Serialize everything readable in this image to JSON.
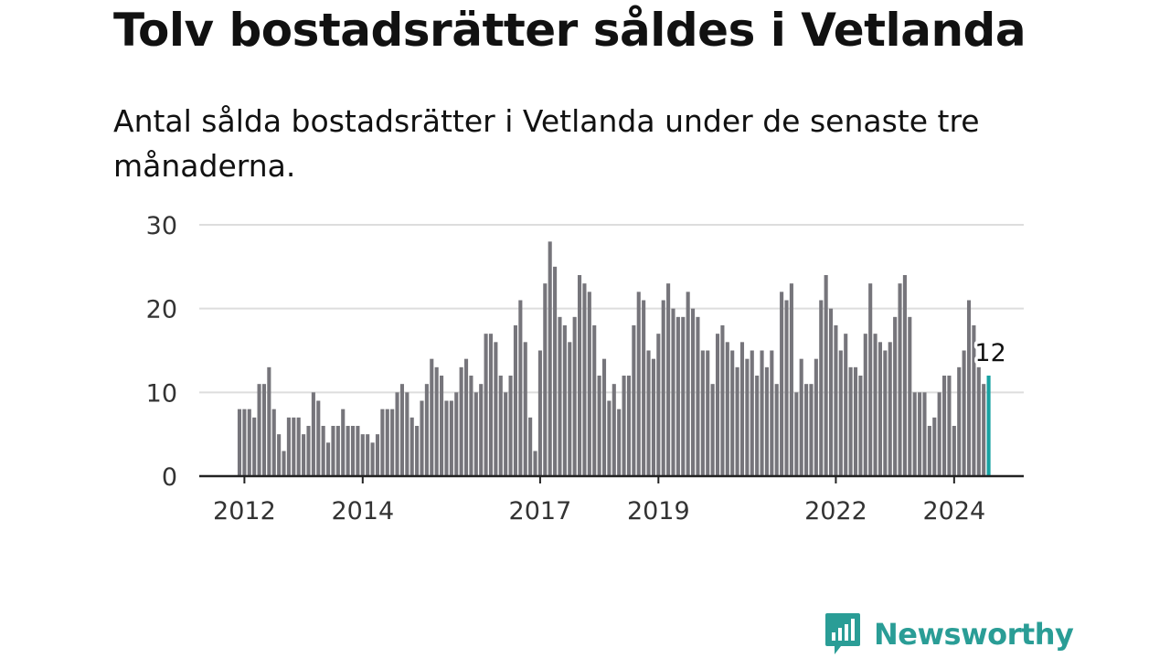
{
  "header": {
    "title": "Tolv bostadsrätter såldes i Vetlanda",
    "subtitle": "Antal sålda bostadsrätter i Vetlanda under de senaste tre månaderna."
  },
  "brand": {
    "name": "Newsworthy",
    "logo_icon": "bar-chart-speech-bubble-icon",
    "color": "#2a9d96"
  },
  "colors": {
    "bar": "#76757b",
    "highlight": "#17a2a2",
    "grid": "#dddddd",
    "axis": "#222222"
  },
  "chart_data": {
    "type": "bar",
    "title": "Tolv bostadsrätter såldes i Vetlanda",
    "subtitle": "Antal sålda bostadsrätter i Vetlanda under de senaste tre månaderna.",
    "x_start": "2011-12",
    "x_unit": "month",
    "ylim": [
      0,
      30
    ],
    "yticks": [
      0,
      10,
      20,
      30
    ],
    "xticks": [
      "2012",
      "2014",
      "2017",
      "2019",
      "2022",
      "2024"
    ],
    "grid": true,
    "values": [
      8,
      8,
      8,
      7,
      11,
      11,
      13,
      8,
      5,
      3,
      7,
      7,
      7,
      5,
      6,
      10,
      9,
      6,
      4,
      6,
      6,
      8,
      6,
      6,
      6,
      5,
      5,
      4,
      5,
      8,
      8,
      8,
      10,
      11,
      10,
      7,
      6,
      9,
      11,
      14,
      13,
      12,
      9,
      9,
      10,
      13,
      14,
      12,
      10,
      11,
      17,
      17,
      16,
      12,
      10,
      12,
      18,
      21,
      16,
      7,
      3,
      15,
      23,
      28,
      25,
      19,
      18,
      16,
      19,
      24,
      23,
      22,
      18,
      12,
      14,
      9,
      11,
      8,
      12,
      12,
      18,
      22,
      21,
      15,
      14,
      17,
      21,
      23,
      20,
      19,
      19,
      22,
      20,
      19,
      15,
      15,
      11,
      17,
      18,
      16,
      15,
      13,
      16,
      14,
      15,
      12,
      15,
      13,
      15,
      11,
      22,
      21,
      23,
      10,
      14,
      11,
      11,
      14,
      21,
      24,
      20,
      18,
      15,
      17,
      13,
      13,
      12,
      17,
      23,
      17,
      16,
      15,
      16,
      19,
      23,
      24,
      19,
      10,
      10,
      10,
      6,
      7,
      10,
      12,
      12,
      6,
      13,
      15,
      21,
      18,
      13,
      11,
      12
    ],
    "highlight": {
      "value": 12,
      "label": "12"
    }
  }
}
